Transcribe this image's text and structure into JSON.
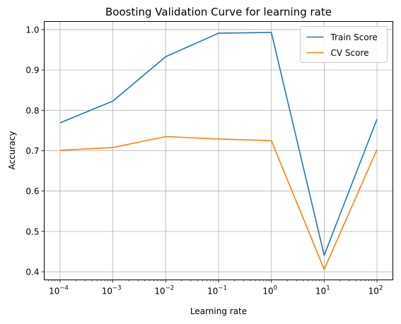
{
  "chart_data": {
    "type": "line",
    "title": "Boosting Validation Curve for learning rate",
    "xlabel": "Learning rate",
    "ylabel": "Accuracy",
    "xscale": "log",
    "x": [
      0.0001,
      0.001,
      0.01,
      0.1,
      1,
      10,
      100
    ],
    "x_tick_labels": [
      {
        "base": "10",
        "exp": "−4"
      },
      {
        "base": "10",
        "exp": "−3"
      },
      {
        "base": "10",
        "exp": "−2"
      },
      {
        "base": "10",
        "exp": "−1"
      },
      {
        "base": "10",
        "exp": "0"
      },
      {
        "base": "10",
        "exp": "1"
      },
      {
        "base": "10",
        "exp": "2"
      }
    ],
    "y_ticks": [
      0.4,
      0.5,
      0.6,
      0.7,
      0.8,
      0.9,
      1.0
    ],
    "y_tick_labels": [
      "0.4",
      "0.5",
      "0.6",
      "0.7",
      "0.8",
      "0.9",
      "1.0"
    ],
    "xlim": [
      5e-05,
      200
    ],
    "ylim": [
      0.38,
      1.02
    ],
    "grid": true,
    "legend_position": "top-right",
    "series": [
      {
        "name": "Train Score",
        "color": "#1f77b4",
        "values": [
          0.769,
          0.823,
          0.933,
          0.991,
          0.993,
          0.441,
          0.778
        ]
      },
      {
        "name": "CV Score",
        "color": "#ff7f0e",
        "values": [
          0.701,
          0.708,
          0.735,
          0.729,
          0.725,
          0.406,
          0.703
        ]
      }
    ]
  }
}
